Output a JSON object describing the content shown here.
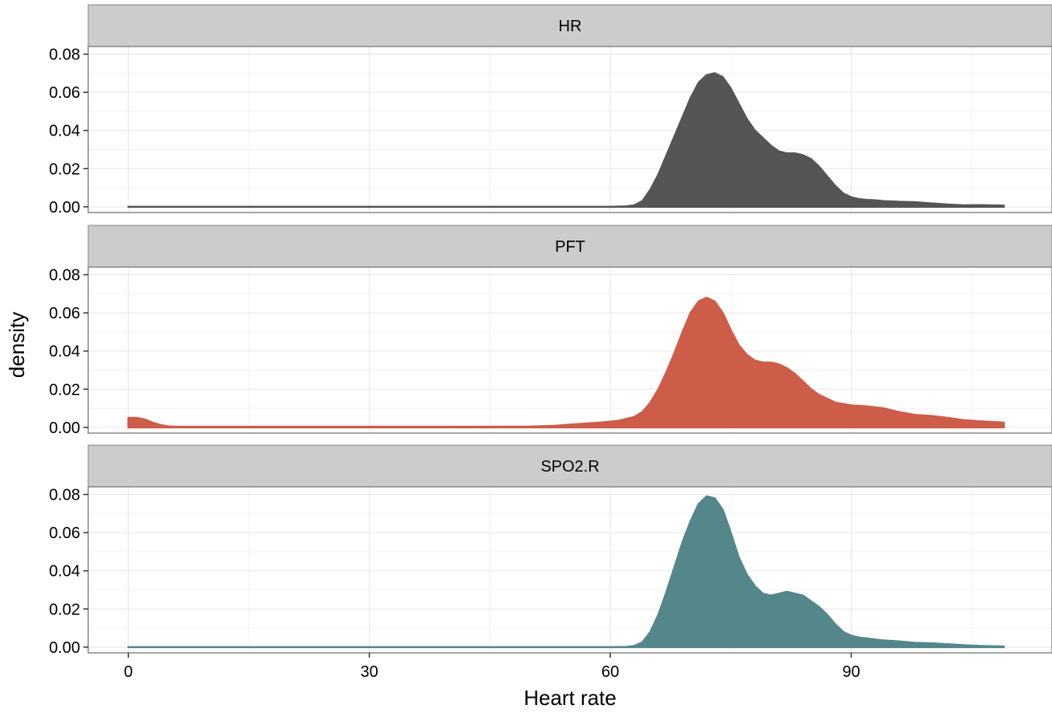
{
  "chart_data": {
    "type": "area",
    "facet_layout": "vertical",
    "xlabel": "Heart rate",
    "ylabel": "density",
    "xlim": [
      -5,
      115
    ],
    "ylim": [
      -0.003,
      0.084
    ],
    "x_ticks": [
      0,
      30,
      60,
      90
    ],
    "x_tick_labels": [
      "0",
      "30",
      "60",
      "90"
    ],
    "y_ticks": [
      0,
      0.02,
      0.04,
      0.06,
      0.08
    ],
    "y_tick_labels": [
      "0.00",
      "0.02",
      "0.04",
      "0.06",
      "0.08"
    ],
    "grid": true,
    "legend": "none",
    "panels": [
      {
        "label": "HR",
        "color": "#555555",
        "x": [
          0,
          20,
          40,
          55,
          60,
          62,
          63,
          64,
          65,
          66,
          67,
          68,
          69,
          70,
          71,
          72,
          73,
          74,
          75,
          76,
          77,
          78,
          79,
          80,
          81,
          82,
          83,
          84,
          85,
          86,
          87,
          88,
          89,
          90,
          91,
          92,
          93,
          94,
          96,
          98,
          100,
          102,
          104,
          106,
          109
        ],
        "values": [
          0,
          0,
          0,
          0,
          0,
          0.0002,
          0.0008,
          0.003,
          0.009,
          0.017,
          0.027,
          0.037,
          0.047,
          0.057,
          0.065,
          0.069,
          0.07,
          0.068,
          0.062,
          0.054,
          0.046,
          0.04,
          0.036,
          0.032,
          0.029,
          0.028,
          0.028,
          0.027,
          0.025,
          0.021,
          0.016,
          0.011,
          0.007,
          0.005,
          0.004,
          0.0036,
          0.0034,
          0.003,
          0.0026,
          0.0024,
          0.0018,
          0.0012,
          0.0008,
          0.0009,
          0.0006
        ]
      },
      {
        "label": "PFT",
        "color": "#cd5c48",
        "x": [
          0,
          1,
          2,
          3,
          4,
          5,
          6,
          10,
          20,
          40,
          50,
          53,
          55,
          57,
          59,
          61,
          63,
          64,
          65,
          66,
          67,
          68,
          69,
          70,
          71,
          72,
          73,
          74,
          75,
          76,
          77,
          78,
          79,
          80,
          81,
          82,
          83,
          84,
          85,
          86,
          87,
          88,
          90,
          92,
          94,
          96,
          98,
          100,
          102,
          104,
          106,
          109
        ],
        "values": [
          0.005,
          0.005,
          0.0042,
          0.0025,
          0.0012,
          0.0005,
          0.0003,
          0.0003,
          0.0003,
          0.0003,
          0.0004,
          0.0008,
          0.0014,
          0.002,
          0.0026,
          0.0034,
          0.0055,
          0.008,
          0.013,
          0.02,
          0.029,
          0.039,
          0.05,
          0.06,
          0.066,
          0.068,
          0.066,
          0.06,
          0.051,
          0.043,
          0.038,
          0.035,
          0.034,
          0.034,
          0.033,
          0.031,
          0.028,
          0.024,
          0.02,
          0.017,
          0.015,
          0.013,
          0.0115,
          0.011,
          0.01,
          0.008,
          0.0065,
          0.006,
          0.005,
          0.0038,
          0.0032,
          0.0025
        ]
      },
      {
        "label": "SPO2.R",
        "color": "#548789",
        "x": [
          0,
          20,
          40,
          55,
          60,
          62,
          63,
          64,
          65,
          66,
          67,
          68,
          69,
          70,
          71,
          72,
          73,
          74,
          75,
          76,
          77,
          78,
          79,
          80,
          81,
          82,
          83,
          84,
          85,
          86,
          87,
          88,
          89,
          90,
          91,
          92,
          93,
          94,
          96,
          98,
          100,
          102,
          104,
          106,
          109
        ],
        "values": [
          0,
          0,
          0,
          0,
          0,
          0.0001,
          0.0006,
          0.0025,
          0.008,
          0.017,
          0.029,
          0.042,
          0.055,
          0.066,
          0.075,
          0.079,
          0.078,
          0.072,
          0.06,
          0.047,
          0.038,
          0.032,
          0.028,
          0.027,
          0.028,
          0.029,
          0.028,
          0.027,
          0.024,
          0.021,
          0.017,
          0.012,
          0.008,
          0.006,
          0.005,
          0.0045,
          0.004,
          0.0035,
          0.003,
          0.0022,
          0.002,
          0.0015,
          0.001,
          0.0006,
          0.0003
        ]
      }
    ]
  }
}
